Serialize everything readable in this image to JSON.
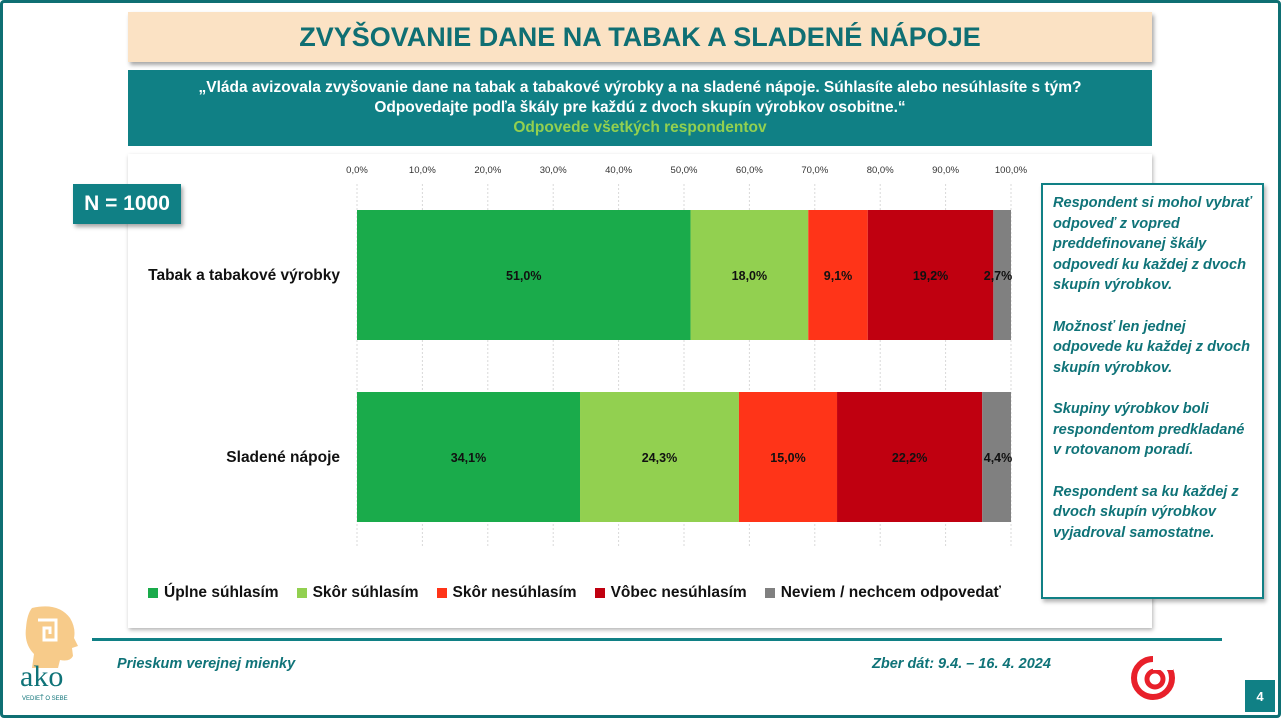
{
  "header": {
    "title": "ZVYŠOVANIE DANE NA TABAK A SLADENÉ NÁPOJE",
    "question_line1": "„Vláda avizovala zvyšovanie dane na tabak a tabakové výrobky a na sladené nápoje. Súhlasíte alebo nesúhlasíte s tým?",
    "question_line2": "Odpovedajte podľa škály pre každú z dvoch skupín výrobkov osobitne.“",
    "question_sub": "Odpovede všetkých respondentov"
  },
  "sample": {
    "label": "N = 1000"
  },
  "chart_data": {
    "type": "bar",
    "orientation": "horizontal",
    "stacked": true,
    "categories": [
      "Tabak a tabakové výrobky",
      "Sladené nápoje"
    ],
    "series": [
      {
        "name": "Úplne súhlasím",
        "color": "#1aab4b",
        "values": [
          51.0,
          34.1
        ],
        "labels": [
          "51,0%",
          "34,1%"
        ]
      },
      {
        "name": "Skôr súhlasím",
        "color": "#92d050",
        "values": [
          18.0,
          24.3
        ],
        "labels": [
          "18,0%",
          "24,3%"
        ]
      },
      {
        "name": "Skôr nesúhlasím",
        "color": "#ff3418",
        "values": [
          9.1,
          15.0
        ],
        "labels": [
          "9,1%",
          "15,0%"
        ]
      },
      {
        "name": "Vôbec nesúhlasím",
        "color": "#c00010",
        "values": [
          19.2,
          22.2
        ],
        "labels": [
          "19,2%",
          "22,2%"
        ]
      },
      {
        "name": "Neviem / nechcem odpovedať",
        "color": "#808080",
        "values": [
          2.7,
          4.4
        ],
        "labels": [
          "2,7%",
          "4,4%"
        ]
      }
    ],
    "x_ticks": [
      "0,0%",
      "10,0%",
      "20,0%",
      "30,0%",
      "40,0%",
      "50,0%",
      "60,0%",
      "70,0%",
      "80,0%",
      "90,0%",
      "100,0%"
    ],
    "xlim": [
      0,
      100
    ],
    "axis_position": "top",
    "grid": true,
    "legend_position": "bottom"
  },
  "notes": [
    "Respondent si mohol vybrať odpoveď z vopred preddefinovanej škály odpovedí ku každej z dvoch skupín výrobkov.",
    "Možnosť len jednej odpovede ku každej z dvoch skupín výrobkov.",
    "Skupiny výrobkov boli respondentom predkladané v rotovanom poradí.",
    "Respondent sa ku každej z dvoch skupín výrobkov vyjadroval samostatne."
  ],
  "footer": {
    "left": "Prieskum verejnej mienky",
    "right": "Zber dát: 9.4. – 16. 4. 2024",
    "page_number": "4"
  },
  "logos": {
    "ako_text": "ako",
    "ako_tagline": "VEDIEŤ O SEBE",
    "ako_icon": "ako-head-icon",
    "tv_icon": "stv-logo-icon"
  }
}
